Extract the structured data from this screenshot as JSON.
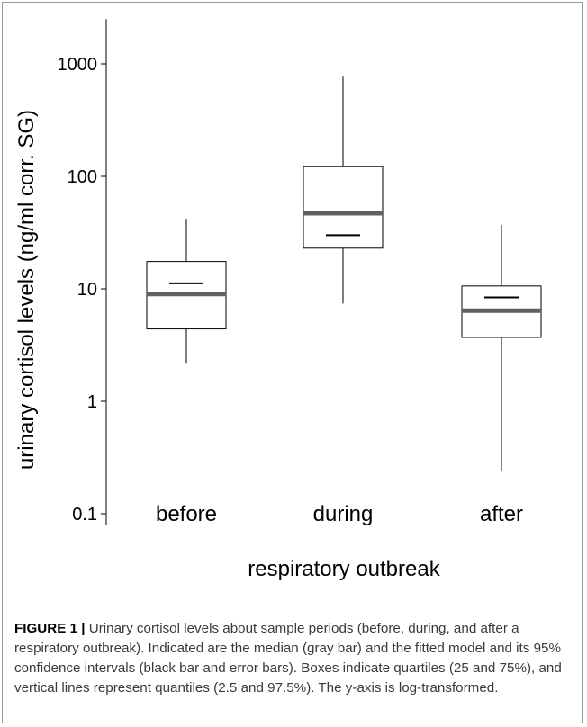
{
  "chart_data": {
    "type": "box",
    "title": "",
    "xlabel": "respiratory outbreak",
    "ylabel": "urinary cortisol levels (ng/ml corr. SG)",
    "yscale": "log",
    "ylim": [
      0.08,
      2500
    ],
    "yticks": [
      {
        "value": 0.1,
        "label": "0.1"
      },
      {
        "value": 1,
        "label": "1"
      },
      {
        "value": 10,
        "label": "10"
      },
      {
        "value": 100,
        "label": "100"
      },
      {
        "value": 1000,
        "label": "1000"
      }
    ],
    "categories": [
      "before",
      "during",
      "after"
    ],
    "boxes": [
      {
        "category": "before",
        "whisker_low": 2.2,
        "q1": 4.4,
        "median": 9.0,
        "q3": 17.5,
        "whisker_high": 42,
        "fitted": 11.2
      },
      {
        "category": "during",
        "whisker_low": 7.4,
        "q1": 23,
        "median": 47,
        "q3": 122,
        "whisker_high": 770,
        "fitted": 30
      },
      {
        "category": "after",
        "whisker_low": 0.24,
        "q1": 3.7,
        "median": 6.4,
        "q3": 10.6,
        "whisker_high": 37,
        "fitted": 8.4
      }
    ],
    "grid": false,
    "legend": "none",
    "colors": {
      "median": "#606060",
      "box_stroke": "#000000",
      "fitted": "#000000",
      "text": "#000000"
    }
  },
  "caption": {
    "label": "FIGURE 1 |",
    "text": " Urinary cortisol levels about sample periods (before, during, and after a respiratory outbreak). Indicated are the median (gray bar) and the fitted model and its 95% confidence intervals (black bar and error bars). Boxes indicate quartiles (25 and 75%), and vertical lines represent quantiles (2.5 and 97.5%). The y-axis is log-transformed."
  }
}
